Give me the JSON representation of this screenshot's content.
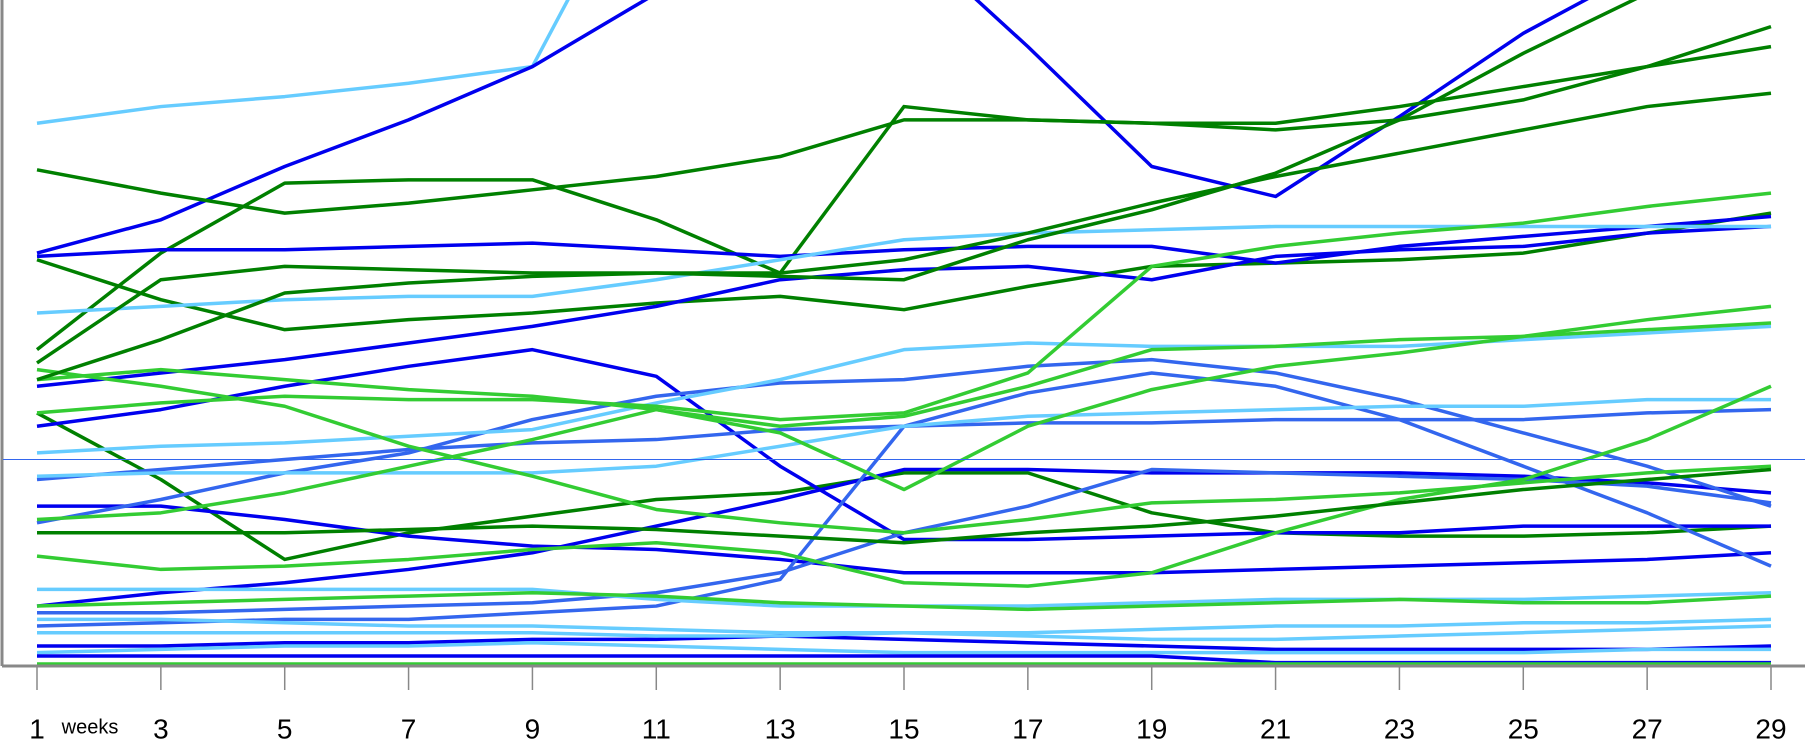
{
  "chart_data": {
    "type": "line",
    "x_label": "weeks",
    "x": [
      1,
      3,
      5,
      7,
      9,
      11,
      13,
      15,
      17,
      19,
      21,
      23,
      25,
      27,
      29
    ],
    "xlim": [
      1,
      29
    ],
    "xticks": [
      1,
      3,
      5,
      7,
      9,
      11,
      13,
      15,
      17,
      19,
      21,
      23,
      25,
      27,
      29
    ],
    "ylim": [
      0,
      100
    ],
    "reference_line": 31,
    "reference_color": "#3366ee",
    "series": [
      {
        "color": "#66ccff",
        "values": [
          81.5,
          84,
          85.5,
          87.5,
          90,
          125,
          null,
          null,
          null,
          null,
          null,
          null,
          null,
          null,
          null
        ]
      },
      {
        "color": "#0000ee",
        "values": [
          62,
          67,
          75,
          82,
          90,
          101,
          115,
          null,
          null,
          null,
          null,
          null,
          null,
          null,
          null
        ]
      },
      {
        "color": "#0000ee",
        "values": [
          null,
          null,
          null,
          null,
          null,
          null,
          null,
          110,
          93,
          75,
          70.5,
          82.5,
          95,
          105,
          null
        ]
      },
      {
        "color": "#008000",
        "values": [
          74.5,
          71,
          68,
          69.5,
          71.5,
          73.5,
          76.5,
          82,
          82,
          81.5,
          81.5,
          84,
          87,
          90,
          93
        ]
      },
      {
        "color": "#008000",
        "values": [
          47.5,
          62,
          72.5,
          73,
          73,
          67,
          59,
          84,
          82,
          81.5,
          80.5,
          82,
          85,
          90,
          96
        ]
      },
      {
        "color": "#008000",
        "values": [
          61,
          55,
          50.5,
          52,
          53,
          54.5,
          55.5,
          53.5,
          57,
          60,
          60.5,
          61,
          62,
          65,
          68
        ]
      },
      {
        "color": "#008000",
        "values": [
          38,
          28,
          16,
          20,
          22.5,
          25,
          26,
          29,
          29,
          23,
          20,
          19.5,
          19.5,
          20,
          21
        ]
      },
      {
        "color": "#0000ee",
        "values": [
          61.5,
          62.5,
          62.5,
          63,
          63.5,
          62.5,
          61.5,
          62.5,
          63,
          63,
          60.5,
          63,
          64.5,
          66,
          67.5
        ]
      },
      {
        "color": "#0000ee",
        "values": [
          42,
          44,
          46,
          48.5,
          51,
          54,
          58,
          59.5,
          60,
          58,
          61.5,
          62.5,
          63,
          65,
          66
        ]
      },
      {
        "color": "#0000ee",
        "values": [
          36,
          38.5,
          42,
          45,
          47.5,
          43.5,
          30,
          19,
          19,
          19.5,
          20,
          20,
          21,
          21,
          21
        ]
      },
      {
        "color": "#0000ee",
        "values": [
          24,
          24,
          22,
          19.5,
          18,
          17.5,
          16,
          14,
          14,
          14,
          14.5,
          15,
          15.5,
          16,
          17
        ]
      },
      {
        "color": "#0000ee",
        "values": [
          9,
          11,
          12.5,
          14.5,
          17,
          21,
          25,
          29.5,
          29.5,
          29,
          29,
          29,
          28.5,
          27.5,
          26
        ]
      },
      {
        "color": "#3366ee",
        "values": [
          21.5,
          25,
          29,
          32,
          37,
          40.5,
          42.5,
          43,
          45,
          46,
          44,
          40,
          35,
          30,
          24
        ]
      },
      {
        "color": "#3366ee",
        "values": [
          28,
          29.5,
          31,
          32.5,
          33.5,
          34,
          35.5,
          36,
          36.5,
          36.5,
          37,
          37,
          37,
          38,
          38.5
        ]
      },
      {
        "color": "#3366ee",
        "values": [
          8,
          8,
          8.5,
          9,
          9.5,
          11,
          14,
          20,
          24,
          29.5,
          29,
          28.5,
          28,
          27,
          24.5
        ]
      },
      {
        "color": "#3366ee",
        "values": [
          6,
          6.5,
          7,
          7,
          8,
          9,
          13,
          36,
          41,
          44,
          42,
          37,
          30,
          23,
          15
        ]
      },
      {
        "color": "#66ccff",
        "values": [
          53,
          54,
          55,
          55.5,
          55.5,
          58,
          61,
          64,
          65,
          65.5,
          66,
          66,
          66,
          66,
          66
        ]
      },
      {
        "color": "#66ccff",
        "values": [
          32,
          33,
          33.5,
          34.5,
          35.5,
          39.5,
          43,
          47.5,
          48.5,
          48,
          48,
          48,
          49,
          50,
          51
        ]
      },
      {
        "color": "#66ccff",
        "values": [
          28.5,
          29,
          29,
          29,
          29,
          30,
          33,
          36,
          37.5,
          38,
          38.5,
          39,
          39,
          40,
          40
        ]
      },
      {
        "color": "#66ccff",
        "values": [
          11.5,
          11.5,
          11.5,
          11.5,
          11.5,
          10,
          9,
          9,
          9,
          9.5,
          10,
          10,
          10,
          10.5,
          11
        ]
      },
      {
        "color": "#33cc33",
        "values": [
          43,
          44.5,
          43,
          41.5,
          40.5,
          38.5,
          36,
          37.5,
          42,
          47.5,
          48,
          49,
          49.5,
          50.5,
          51.5
        ]
      },
      {
        "color": "#33cc33",
        "values": [
          16.5,
          14.5,
          15,
          16,
          17.5,
          18.5,
          17,
          12.5,
          12,
          14,
          20,
          25,
          28,
          34,
          42
        ]
      },
      {
        "color": "#33cc33",
        "values": [
          22,
          23,
          26,
          30,
          34,
          38.5,
          35,
          26.5,
          36,
          41.5,
          45,
          47,
          49.5,
          52,
          54
        ]
      },
      {
        "color": "#33cc33",
        "values": [
          44.5,
          42,
          39,
          33,
          28.5,
          23.5,
          21.5,
          20,
          22,
          24.5,
          25,
          26,
          27.5,
          29,
          30
        ]
      },
      {
        "color": "#33cc33",
        "values": [
          38,
          39.5,
          40.5,
          40,
          40,
          39,
          37,
          38,
          44,
          60,
          63,
          65,
          66.5,
          69,
          71
        ]
      },
      {
        "color": "#33cc33",
        "values": [
          9,
          9.5,
          10,
          10.5,
          11,
          10.5,
          9.5,
          9,
          8.5,
          9,
          9.5,
          10,
          9.5,
          9.5,
          10.5
        ]
      },
      {
        "color": "#008000",
        "values": [
          20,
          20,
          20,
          20.5,
          21,
          20.5,
          19.5,
          18.5,
          20,
          21,
          22.5,
          24.5,
          26.5,
          28,
          29.5
        ]
      },
      {
        "color": "#008000",
        "values": [
          43,
          49,
          56,
          57.5,
          58.5,
          59,
          59,
          61,
          65,
          69.5,
          73.5,
          77,
          80.5,
          84,
          86
        ]
      },
      {
        "color": "#008000",
        "values": [
          45.5,
          58,
          60,
          59.5,
          59,
          59,
          58.5,
          58,
          64,
          68.5,
          74,
          82,
          92,
          101,
          null
        ]
      },
      {
        "color": "#66ccff",
        "values": [
          7,
          7,
          6.5,
          6,
          6,
          5.5,
          5,
          5,
          4.5,
          4,
          4,
          4.5,
          5,
          5.5,
          6
        ]
      },
      {
        "color": "#0000ee",
        "values": [
          3,
          3,
          3.5,
          3.5,
          4,
          4,
          4.5,
          4,
          3.5,
          3,
          2.5,
          2.5,
          2.5,
          2.5,
          3
        ]
      },
      {
        "color": "#66ccff",
        "values": [
          2,
          2.5,
          3,
          3,
          3.5,
          3,
          2.5,
          2,
          2,
          2,
          2,
          2,
          2,
          2.5,
          2.5
        ]
      },
      {
        "color": "#0000ee",
        "values": [
          1.5,
          1.5,
          1.5,
          1.5,
          1.5,
          1.5,
          1.5,
          1.5,
          1.5,
          1.5,
          0.5,
          0.5,
          0.5,
          0.5,
          0.5
        ]
      },
      {
        "color": "#33cc33",
        "values": [
          0.3,
          0.3,
          0.3,
          0.3,
          0.3,
          0.3,
          0.3,
          0.3,
          0.3,
          0.3,
          0.3,
          0.3,
          0.3,
          0.3,
          0.3
        ]
      },
      {
        "color": "#66ccff",
        "values": [
          5,
          5,
          5,
          5,
          5,
          4.5,
          4.5,
          5,
          5,
          5.5,
          6,
          6,
          6.5,
          6.5,
          7
        ]
      }
    ]
  }
}
